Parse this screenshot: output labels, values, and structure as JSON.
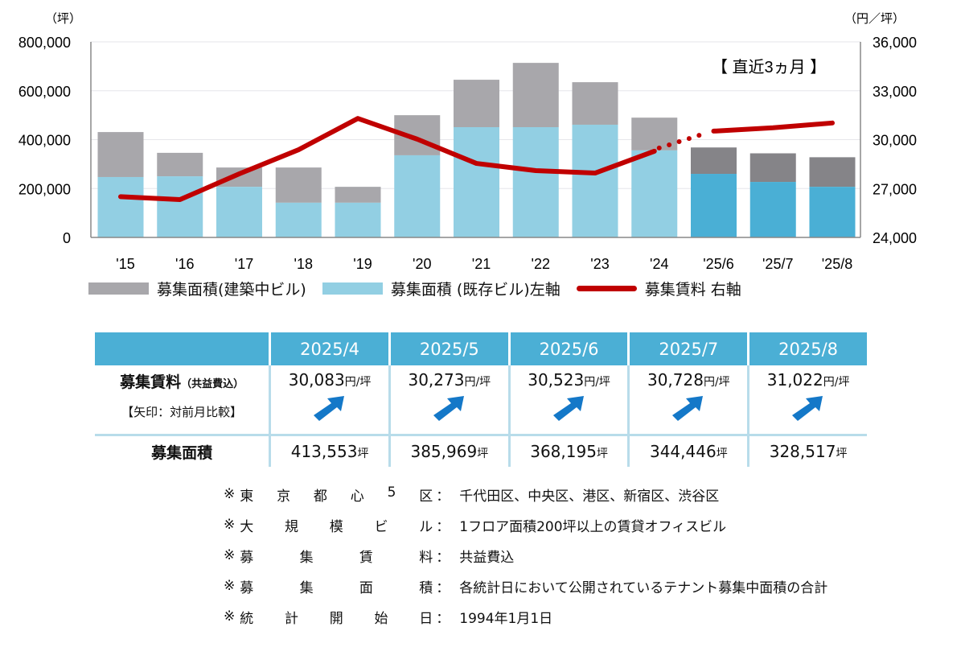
{
  "chart_data": {
    "type": "bar",
    "stacked": true,
    "categories": [
      "'15",
      "'16",
      "'17",
      "'18",
      "'19",
      "'20",
      "'21",
      "'22",
      "'23",
      "'24",
      "'25/6",
      "'25/7",
      "'25/8"
    ],
    "series": [
      {
        "name": "募集面積（既存ビル）左軸",
        "axis": "left",
        "type": "bar",
        "color": "#92CFE3",
        "recent_color": "#4AAFD5",
        "values": [
          247000,
          250000,
          207000,
          142000,
          142000,
          336000,
          451000,
          451000,
          461000,
          356000,
          260000,
          227000,
          207000
        ]
      },
      {
        "name": "募集面積（建築中ビル）",
        "axis": "left",
        "type": "bar",
        "color": "#A8A7AB",
        "recent_color": "#858488",
        "values": [
          184000,
          96000,
          79000,
          144000,
          65000,
          164000,
          194000,
          263000,
          174000,
          134000,
          108000,
          117000,
          121000
        ]
      },
      {
        "name": "募集賃料 右軸",
        "axis": "right",
        "type": "line",
        "color": "#C00000",
        "values": [
          26500,
          26320,
          27900,
          29380,
          31300,
          30030,
          28540,
          28100,
          27950,
          29290,
          30523,
          30728,
          31022
        ]
      }
    ],
    "left_axis": {
      "unit": "（坪）",
      "ylim": [
        0,
        800000
      ],
      "ticks": [
        "0",
        "200,000",
        "400,000",
        "600,000",
        "800,000"
      ]
    },
    "right_axis": {
      "unit": "（円／坪）",
      "ylim": [
        24000,
        36000
      ],
      "ticks": [
        "24,000",
        "27,000",
        "30,000",
        "33,000",
        "36,000"
      ]
    },
    "annotation": "【 直近3ヵ月 】",
    "recent_months_count": 3,
    "grid": true,
    "legend_position": "bottom"
  },
  "legend": [
    "募集面積(建築中ビル)",
    "募集面積 (既存ビル)左軸",
    "募集賃料 右軸"
  ],
  "table": {
    "months": [
      "2025/4",
      "2025/5",
      "2025/6",
      "2025/7",
      "2025/8"
    ],
    "rent_label": "募集賃料",
    "rent_sub": "（共益費込）",
    "rent_note": "【矢印：対前月比較】",
    "rent_unit": "円/坪",
    "rents": [
      "30,083",
      "30,273",
      "30,523",
      "30,728",
      "31,022"
    ],
    "arrows": [
      "up-right-arrow-icon",
      "up-right-arrow-icon",
      "up-right-arrow-icon",
      "up-right-arrow-icon",
      "up-right-arrow-icon"
    ],
    "area_label": "募集面積",
    "area_unit": "坪",
    "areas": [
      "413,553",
      "385,969",
      "368,195",
      "344,446",
      "328,517"
    ],
    "header_color": "#4BAFD5",
    "arrow_color": "#1478C8"
  },
  "notes": [
    {
      "key": [
        "東",
        "京",
        "都",
        "心",
        "5",
        "区"
      ],
      "value": "千代田区、中央区、港区、新宿区、渋谷区"
    },
    {
      "key": [
        "大",
        "規",
        "模",
        "ビ",
        "ル"
      ],
      "value": "1フロア面積200坪以上の賃貸オフィスビル"
    },
    {
      "key": [
        "募",
        "集",
        "賃",
        "料"
      ],
      "value": "共益費込"
    },
    {
      "key": [
        "募",
        "集",
        "面",
        "積"
      ],
      "value": "各統計日において公開されているテナント募集中面積の合計"
    },
    {
      "key": [
        "統",
        "計",
        "開",
        "始",
        "日"
      ],
      "value": "1994年1月1日"
    }
  ],
  "note_mark": "※",
  "note_colon": "："
}
